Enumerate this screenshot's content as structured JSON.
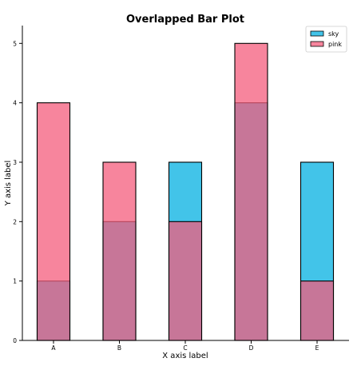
{
  "chart_data": {
    "type": "bar",
    "overlapped": true,
    "title": "Overlapped Bar Plot",
    "xlabel": "X axis label",
    "ylabel": "Y axis label",
    "categories": [
      "A",
      "B",
      "C",
      "D",
      "E"
    ],
    "series": [
      {
        "name": "sky",
        "values": [
          1,
          2,
          3,
          4,
          3
        ],
        "color": "#0db3e3",
        "opacity": 0.78
      },
      {
        "name": "pink",
        "values": [
          4,
          3,
          2,
          5,
          1
        ],
        "color": "#f45c7c",
        "opacity": 0.75
      }
    ],
    "ylim": [
      0,
      5.3
    ],
    "yticks": [
      0,
      1,
      2,
      3,
      4,
      5
    ],
    "grid": false,
    "legend_position": "top-right"
  }
}
